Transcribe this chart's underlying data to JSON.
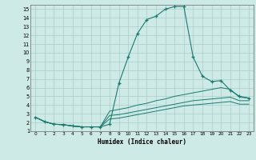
{
  "xlabel": "Humidex (Indice chaleur)",
  "bg_color": "#ceeae7",
  "grid_color": "#aaccca",
  "line_color": "#1a7a6e",
  "xlim": [
    -0.5,
    23.5
  ],
  "ylim": [
    1,
    15.5
  ],
  "xticks": [
    0,
    1,
    2,
    3,
    4,
    5,
    6,
    7,
    8,
    9,
    10,
    11,
    12,
    13,
    14,
    15,
    16,
    17,
    18,
    19,
    20,
    21,
    22,
    23
  ],
  "yticks": [
    1,
    2,
    3,
    4,
    5,
    6,
    7,
    8,
    9,
    10,
    11,
    12,
    13,
    14,
    15
  ],
  "curve1_x": [
    0,
    1,
    2,
    3,
    4,
    5,
    6,
    7,
    8,
    9,
    10,
    11,
    12,
    13,
    14,
    15,
    16,
    17,
    18,
    19,
    20,
    21,
    22,
    23
  ],
  "curve1_y": [
    2.6,
    2.1,
    1.8,
    1.75,
    1.6,
    1.5,
    1.5,
    1.5,
    1.8,
    6.5,
    9.5,
    12.2,
    13.8,
    14.2,
    15.0,
    15.3,
    15.3,
    9.5,
    7.3,
    6.7,
    6.8,
    5.7,
    5.0,
    4.8
  ],
  "curve2_x": [
    0,
    1,
    2,
    3,
    4,
    5,
    6,
    7,
    8,
    9,
    10,
    11,
    12,
    13,
    14,
    15,
    16,
    17,
    18,
    19,
    20,
    21,
    22,
    23
  ],
  "curve2_y": [
    2.6,
    2.1,
    1.8,
    1.75,
    1.6,
    1.5,
    1.5,
    1.5,
    3.3,
    3.5,
    3.7,
    4.0,
    4.2,
    4.5,
    4.7,
    5.0,
    5.2,
    5.4,
    5.6,
    5.8,
    6.0,
    5.8,
    4.9,
    4.8
  ],
  "curve3_x": [
    0,
    1,
    2,
    3,
    4,
    5,
    6,
    7,
    8,
    9,
    10,
    11,
    12,
    13,
    14,
    15,
    16,
    17,
    18,
    19,
    20,
    21,
    22,
    23
  ],
  "curve3_y": [
    2.6,
    2.1,
    1.8,
    1.75,
    1.6,
    1.5,
    1.5,
    1.5,
    2.8,
    2.9,
    3.1,
    3.3,
    3.5,
    3.7,
    3.9,
    4.1,
    4.3,
    4.5,
    4.6,
    4.7,
    4.8,
    4.9,
    4.5,
    4.5
  ],
  "curve4_x": [
    0,
    1,
    2,
    3,
    4,
    5,
    6,
    7,
    8,
    9,
    10,
    11,
    12,
    13,
    14,
    15,
    16,
    17,
    18,
    19,
    20,
    21,
    22,
    23
  ],
  "curve4_y": [
    2.6,
    2.1,
    1.8,
    1.75,
    1.6,
    1.5,
    1.5,
    1.5,
    2.4,
    2.5,
    2.7,
    2.9,
    3.1,
    3.3,
    3.5,
    3.7,
    3.9,
    4.0,
    4.1,
    4.2,
    4.3,
    4.4,
    4.1,
    4.1
  ]
}
